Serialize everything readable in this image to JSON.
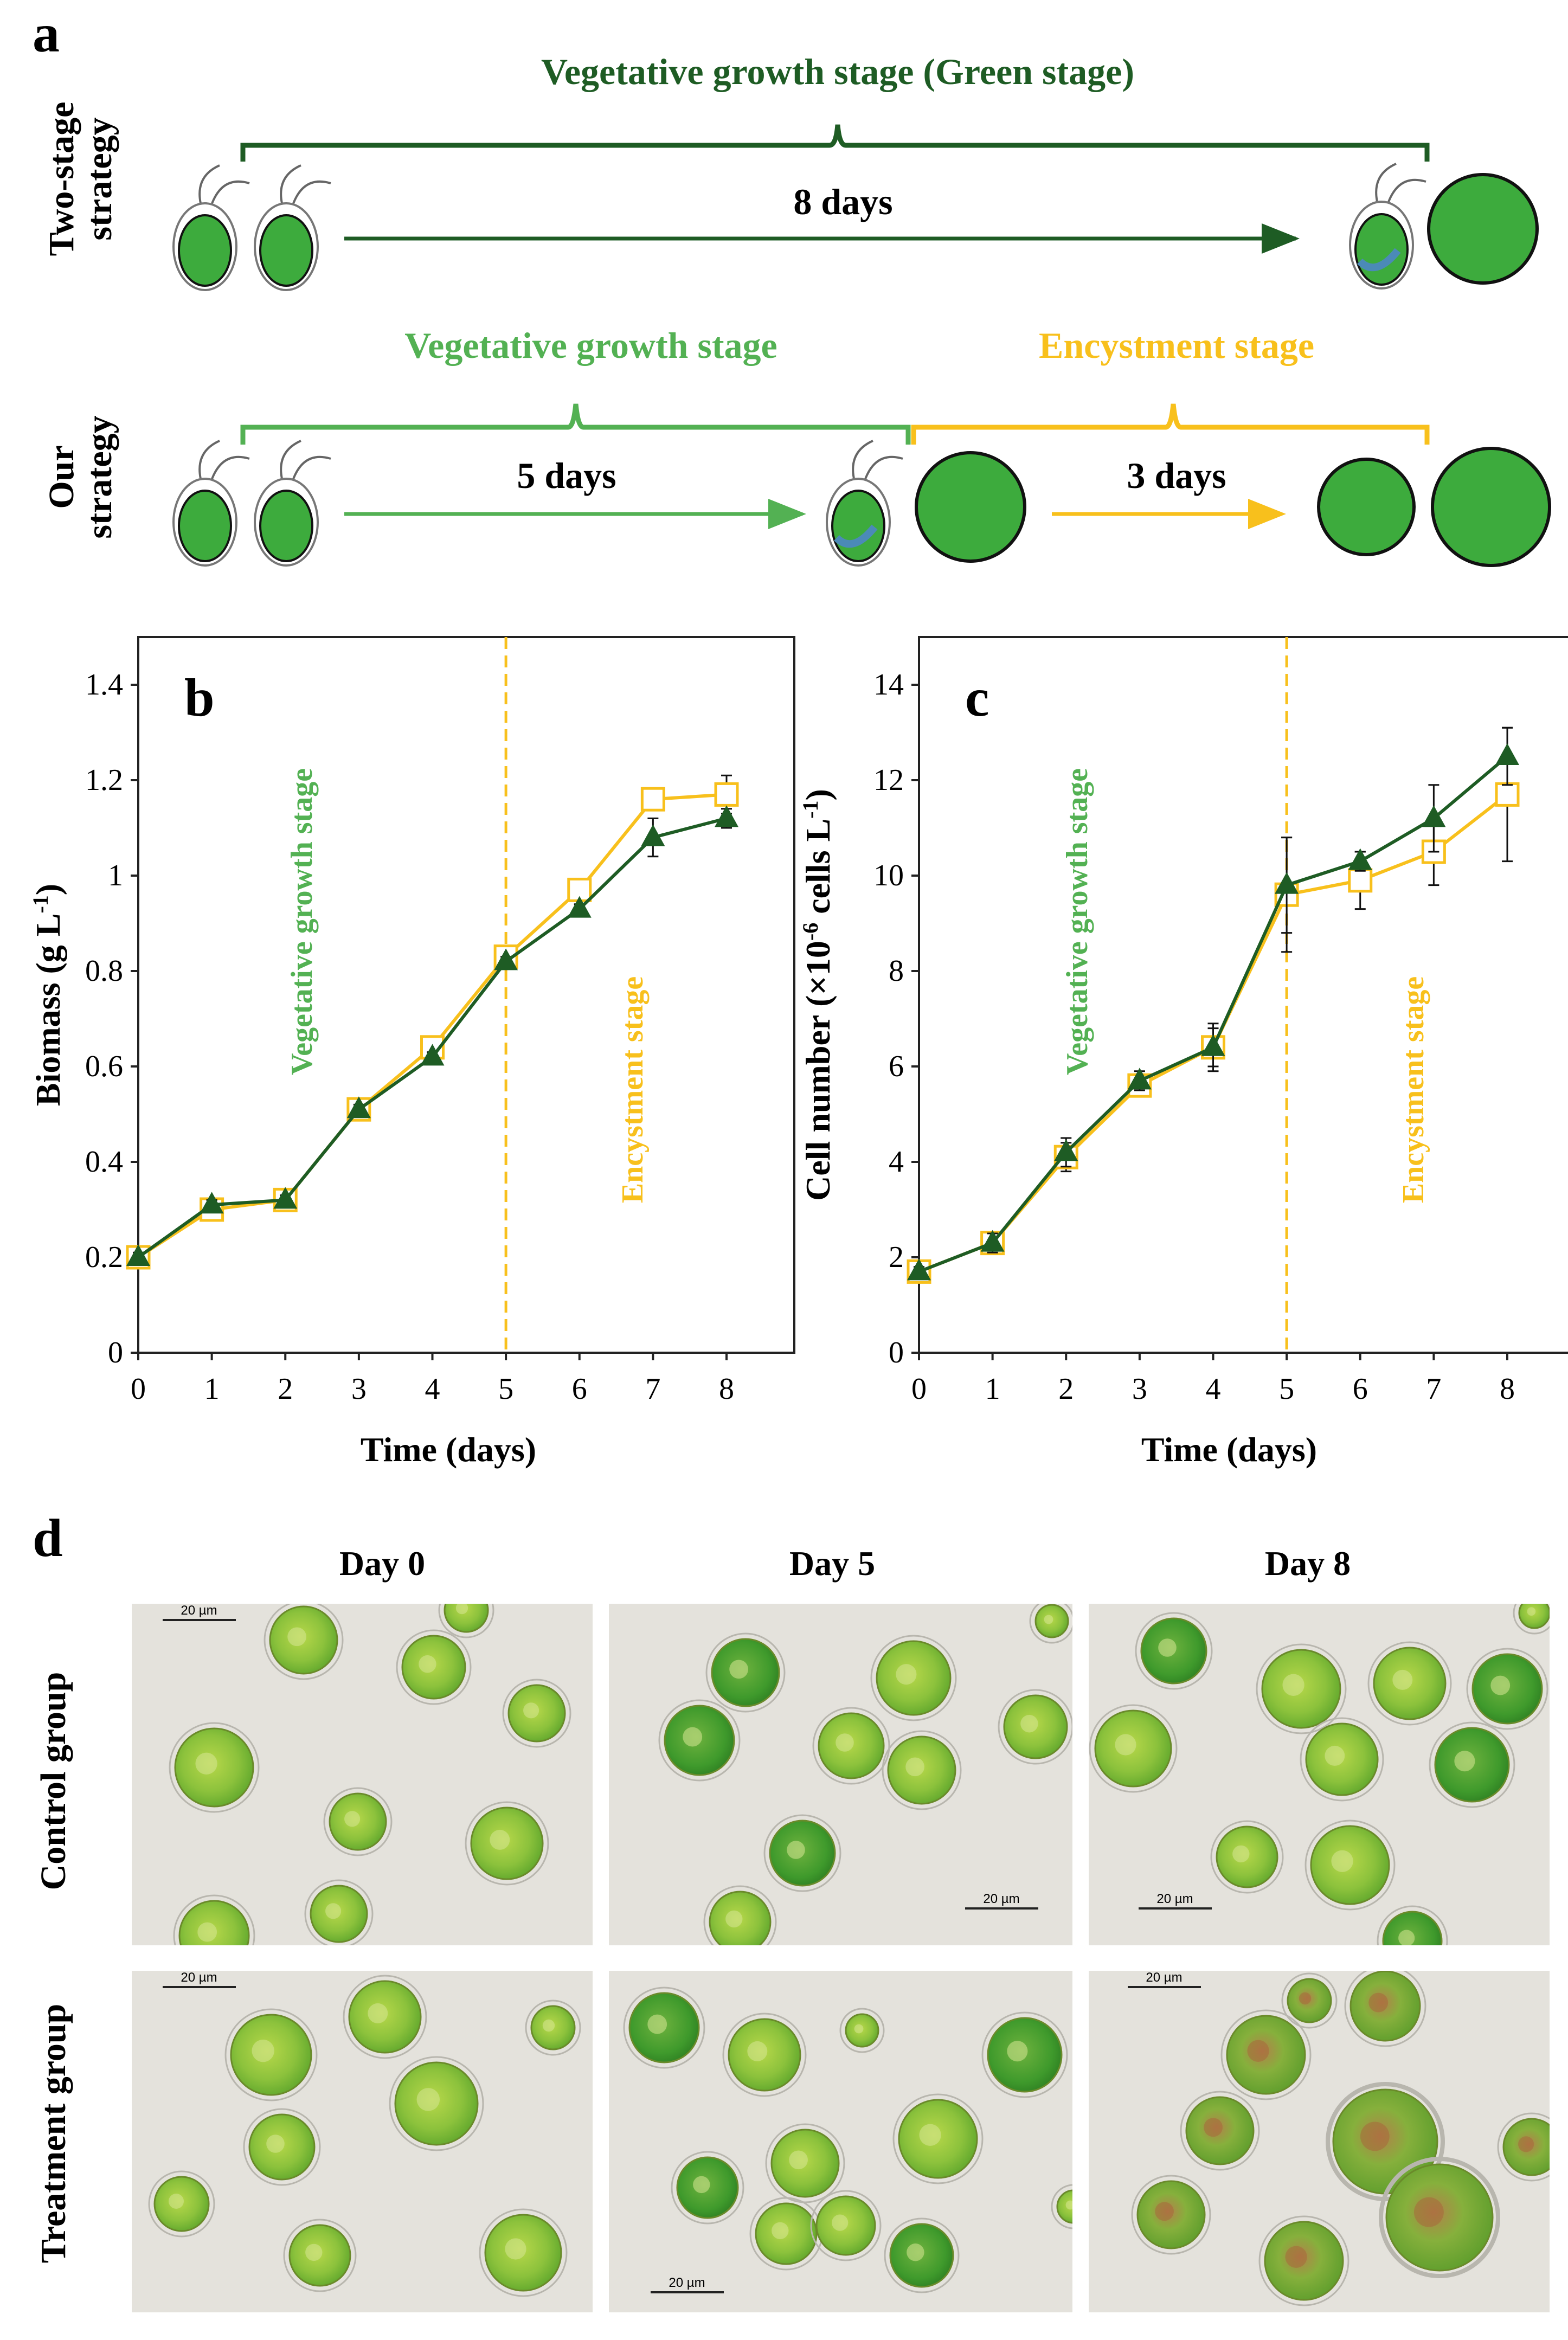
{
  "colors": {
    "dark_green": "#1e5c24",
    "light_green": "#53b153",
    "yellow": "#f8c01c",
    "cell_fill": "#3dab3d",
    "nucleus_blue": "#4b8ab7"
  },
  "panel_a": {
    "letter": "a",
    "two_stage": {
      "row_label_line1": "Two-stage",
      "row_label_line2": "strategy",
      "bracket_label": "Vegetative growth stage (Green stage)",
      "arrow_label": "8 days"
    },
    "our_strategy": {
      "row_label_line1": "Our",
      "row_label_line2": "strategy",
      "veg_label": "Vegetative growth stage",
      "veg_arrow_label": "5 days",
      "enc_label": "Encystment stage",
      "enc_arrow_label": "3 days"
    }
  },
  "panel_b_letter": "b",
  "panel_c_letter": "c",
  "chart_data": [
    {
      "type": "line",
      "panel": "b",
      "xlabel": "Time (days)",
      "ylabel": "Biomass (g L",
      "ylabel_sup": "-1",
      "ylabel_close": ")",
      "x": [
        0,
        1,
        2,
        3,
        4,
        5,
        6,
        7,
        8
      ],
      "xlim": [
        0,
        8
      ],
      "ylim": [
        0,
        1.5
      ],
      "yticks": [
        0,
        0.2,
        0.4,
        0.6,
        0.8,
        1,
        1.2,
        1.4
      ],
      "ytick_labels": [
        "0",
        "0.2",
        "0.4",
        "0.6",
        "0.8",
        "1",
        "1.2",
        "1.4"
      ],
      "divider_x": 5,
      "stage_label_veg": "Vegetative growth stage",
      "stage_label_enc": "Encystment stage",
      "series": [
        {
          "marker": "open-square",
          "color": "#f8c01c",
          "values": [
            0.2,
            0.3,
            0.32,
            0.51,
            0.64,
            0.83,
            0.97,
            1.16,
            1.17
          ],
          "errors": [
            0.01,
            0.01,
            0.01,
            0.01,
            0.01,
            0.01,
            0.01,
            0.01,
            0.04
          ]
        },
        {
          "marker": "filled-triangle",
          "color": "#1e5c24",
          "values": [
            0.2,
            0.31,
            0.32,
            0.51,
            0.62,
            0.82,
            0.93,
            1.08,
            1.12
          ],
          "errors": [
            0.01,
            0.01,
            0.01,
            0.01,
            0.01,
            0.01,
            0.01,
            0.04,
            0.02
          ]
        }
      ]
    },
    {
      "type": "line",
      "panel": "c",
      "xlabel": "Time (days)",
      "ylabel": "Cell number (×10",
      "ylabel_sup": "-6",
      "ylabel_mid": " cells L",
      "ylabel_sup2": "-1",
      "ylabel_close": ")",
      "x": [
        0,
        1,
        2,
        3,
        4,
        5,
        6,
        7,
        8
      ],
      "xlim": [
        0,
        8
      ],
      "ylim": [
        0,
        15
      ],
      "yticks": [
        0,
        2,
        4,
        6,
        8,
        10,
        12,
        14
      ],
      "ytick_labels": [
        "0",
        "2",
        "4",
        "6",
        "8",
        "10",
        "12",
        "14"
      ],
      "divider_x": 5,
      "stage_label_veg": "Vegetative growth stage",
      "stage_label_enc": "Encystment stage",
      "series": [
        {
          "marker": "open-square",
          "color": "#f8c01c",
          "values": [
            1.7,
            2.3,
            4.1,
            5.6,
            6.4,
            9.6,
            9.9,
            10.5,
            11.7
          ],
          "errors": [
            0.1,
            0.2,
            0.3,
            0.2,
            0.4,
            1.2,
            0.6,
            0.7,
            1.4
          ]
        },
        {
          "marker": "filled-triangle",
          "color": "#1e5c24",
          "values": [
            1.7,
            2.3,
            4.2,
            5.7,
            6.4,
            9.8,
            10.3,
            11.2,
            12.5
          ],
          "errors": [
            0.1,
            0.2,
            0.3,
            0.2,
            0.5,
            1.0,
            0.2,
            0.7,
            0.6
          ]
        }
      ]
    }
  ],
  "panel_d": {
    "letter": "d",
    "columns": [
      "Day 0",
      "Day 5",
      "Day 8"
    ],
    "rows": [
      "Control group",
      "Treatment group"
    ],
    "scale_bar": "20 µm"
  }
}
